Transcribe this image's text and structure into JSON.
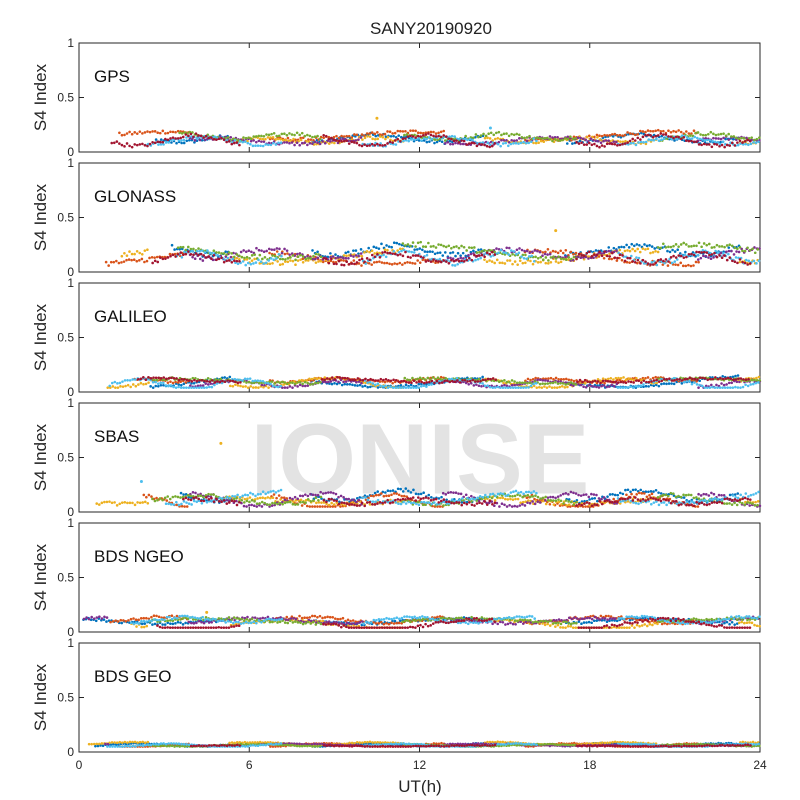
{
  "figure": {
    "title": "SANY20190920",
    "watermark": "IONISE",
    "xlabel": "UT(h)",
    "ylabel": "S4 Index"
  },
  "series_colors": [
    "#0072BD",
    "#D95319",
    "#EDB120",
    "#7E2F8E",
    "#77AC30",
    "#4DBEEE",
    "#A2142F"
  ],
  "chart_data": [
    {
      "type": "scatter",
      "panel_label": "GPS",
      "xlim": [
        0,
        24
      ],
      "ylim": [
        0,
        1
      ],
      "x_ticks": [
        0,
        6,
        12,
        18,
        24
      ],
      "y_ticks": [
        0,
        0.5,
        1
      ],
      "x_tick_labels": [
        "0",
        "6",
        "12",
        "18",
        "24"
      ],
      "y_tick_labels": [
        "0",
        "0.5",
        "1"
      ],
      "typical_s4_range": [
        0.04,
        0.22
      ],
      "peak_points": [
        {
          "x": 10.5,
          "y": 0.31
        },
        {
          "x": 14.5,
          "y": 0.22
        }
      ]
    },
    {
      "type": "scatter",
      "panel_label": "GLONASS",
      "xlim": [
        0,
        24
      ],
      "ylim": [
        0,
        1
      ],
      "x_ticks": [
        0,
        6,
        12,
        18,
        24
      ],
      "y_ticks": [
        0,
        0.5,
        1
      ],
      "x_tick_labels": [
        "0",
        "6",
        "12",
        "18",
        "24"
      ],
      "y_tick_labels": [
        "0",
        "0.5",
        "1"
      ],
      "typical_s4_range": [
        0.05,
        0.3
      ],
      "peak_points": [
        {
          "x": 16.8,
          "y": 0.38
        }
      ]
    },
    {
      "type": "scatter",
      "panel_label": "GALILEO",
      "xlim": [
        0,
        24
      ],
      "ylim": [
        0,
        1
      ],
      "x_ticks": [
        0,
        6,
        12,
        18,
        24
      ],
      "y_ticks": [
        0,
        0.5,
        1
      ],
      "x_tick_labels": [
        "0",
        "6",
        "12",
        "18",
        "24"
      ],
      "y_tick_labels": [
        "0",
        "0.5",
        "1"
      ],
      "typical_s4_range": [
        0.04,
        0.17
      ],
      "peak_points": []
    },
    {
      "type": "scatter",
      "panel_label": "SBAS",
      "xlim": [
        0,
        24
      ],
      "ylim": [
        0,
        1
      ],
      "x_ticks": [
        0,
        6,
        12,
        18,
        24
      ],
      "y_ticks": [
        0,
        0.5,
        1
      ],
      "x_tick_labels": [
        "0",
        "6",
        "12",
        "18",
        "24"
      ],
      "y_tick_labels": [
        "0",
        "0.5",
        "1"
      ],
      "typical_s4_range": [
        0.05,
        0.25
      ],
      "peak_points": [
        {
          "x": 5.0,
          "y": 0.63
        },
        {
          "x": 2.2,
          "y": 0.28
        }
      ]
    },
    {
      "type": "scatter",
      "panel_label": "BDS NGEO",
      "xlim": [
        0,
        24
      ],
      "ylim": [
        0,
        1
      ],
      "x_ticks": [
        0,
        6,
        12,
        18,
        24
      ],
      "y_ticks": [
        0,
        0.5,
        1
      ],
      "x_tick_labels": [
        "0",
        "6",
        "12",
        "18",
        "24"
      ],
      "y_tick_labels": [
        "0",
        "0.5",
        "1"
      ],
      "typical_s4_range": [
        0.04,
        0.18
      ],
      "peak_points": [
        {
          "x": 4.5,
          "y": 0.18
        }
      ]
    },
    {
      "type": "scatter",
      "panel_label": "BDS GEO",
      "xlim": [
        0,
        24
      ],
      "ylim": [
        0,
        1
      ],
      "x_ticks": [
        0,
        6,
        12,
        18,
        24
      ],
      "y_ticks": [
        0,
        0.5,
        1
      ],
      "x_tick_labels": [
        "0",
        "6",
        "12",
        "18",
        "24"
      ],
      "y_tick_labels": [
        "0",
        "0.5",
        "1"
      ],
      "typical_s4_range": [
        0.05,
        0.1
      ],
      "peak_points": []
    }
  ]
}
